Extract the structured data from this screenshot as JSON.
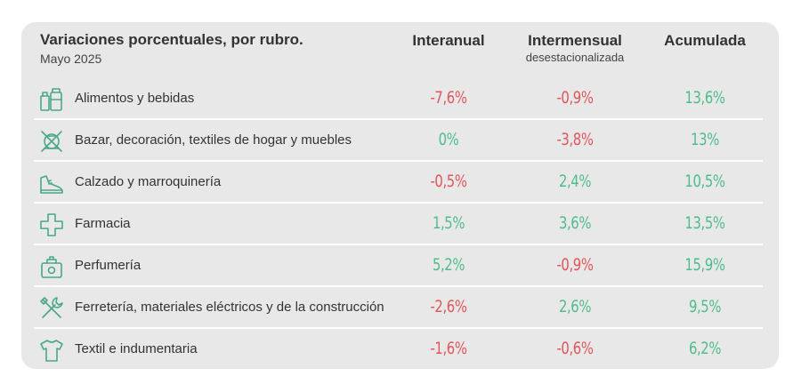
{
  "chart_data": {
    "type": "table",
    "title": "Variaciones porcentuales, por rubro.",
    "subtitle": "Mayo 2025",
    "columns": [
      {
        "label": "Interanual",
        "sublabel": ""
      },
      {
        "label": "Intermensual",
        "sublabel": "desestacionalizada"
      },
      {
        "label": "Acumulada",
        "sublabel": ""
      }
    ],
    "rows": [
      {
        "label": "Alimentos y bebidas",
        "icon": "food-drinks-icon",
        "values": [
          "-7,6%",
          "-0,9%",
          "13,6%"
        ]
      },
      {
        "label": "Bazar, decoración, textiles de hogar y muebles",
        "icon": "household-icon",
        "values": [
          "0%",
          "-3,8%",
          "13%"
        ]
      },
      {
        "label": "Calzado y marroquinería",
        "icon": "shoe-icon",
        "values": [
          "-0,5%",
          "2,4%",
          "10,5%"
        ]
      },
      {
        "label": "Farmacia",
        "icon": "pharmacy-cross-icon",
        "values": [
          "1,5%",
          "3,6%",
          "13,5%"
        ]
      },
      {
        "label": "Perfumería",
        "icon": "perfume-icon",
        "values": [
          "5,2%",
          "-0,9%",
          "15,9%"
        ]
      },
      {
        "label": "Ferretería, materiales eléctricos y de la construcción",
        "icon": "tools-icon",
        "values": [
          "-2,6%",
          "2,6%",
          "9,5%"
        ]
      },
      {
        "label": "Textil e indumentaria",
        "icon": "tshirt-icon",
        "values": [
          "-1,6%",
          "-0,6%",
          "6,2%"
        ]
      }
    ],
    "colors": {
      "negative": "#e0575c",
      "positive": "#4fbd8b",
      "icon": "#4aa888"
    }
  }
}
